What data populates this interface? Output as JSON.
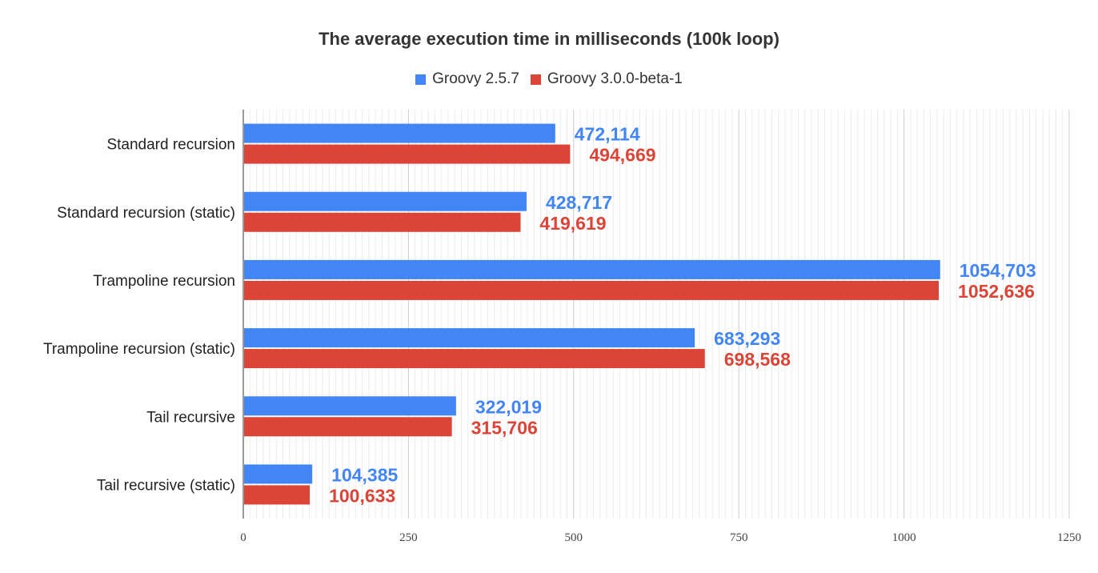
{
  "chart_data": {
    "type": "bar",
    "orientation": "horizontal",
    "title": "The average execution time in milliseconds (100k loop)",
    "xlabel": "",
    "ylabel": "",
    "categories": [
      "Standard recursion",
      "Standard recursion (static)",
      "Trampoline recursion",
      "Trampoline recursion (static)",
      "Tail recursive",
      "Tail recursive (static)"
    ],
    "series": [
      {
        "name": "Groovy 2.5.7",
        "color": "#4285f4",
        "values": [
          472.114,
          428.717,
          1054.703,
          683.293,
          322.019,
          104.385
        ],
        "labels": [
          "472,114",
          "428,717",
          "1054,703",
          "683,293",
          "322,019",
          "104,385"
        ]
      },
      {
        "name": "Groovy 3.0.0-beta-1",
        "color": "#db4437",
        "values": [
          494.669,
          419.619,
          1052.636,
          698.568,
          315.706,
          100.633
        ],
        "labels": [
          "494,669",
          "419,619",
          "1052,636",
          "698,568",
          "315,706",
          "100,633"
        ]
      }
    ],
    "xlim": [
      0,
      1250
    ],
    "xticks": [
      0,
      250,
      500,
      750,
      1000,
      1250
    ],
    "xtick_labels": [
      "0",
      "250",
      "500",
      "750",
      "1000",
      "1250"
    ],
    "grid": true,
    "legend_position": "top-center"
  }
}
